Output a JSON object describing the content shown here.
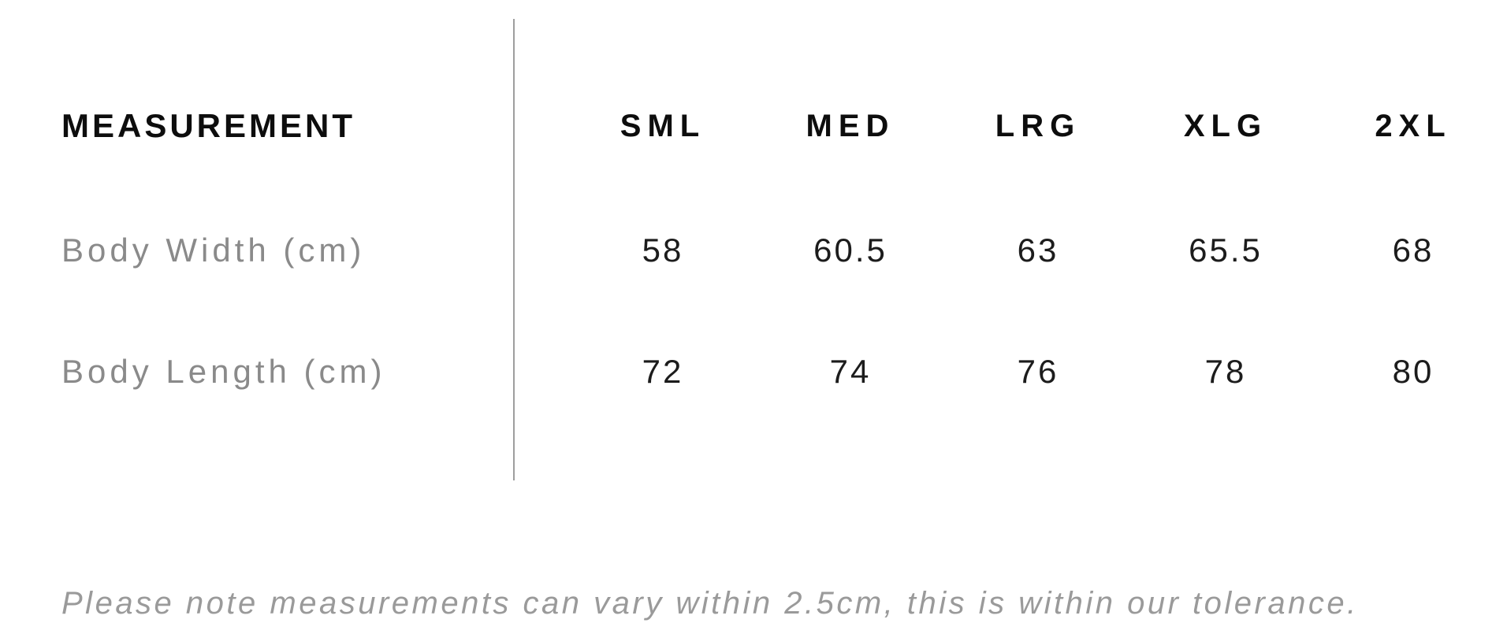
{
  "colors": {
    "background": "#ffffff",
    "header_text": "#0d0d0d",
    "value_text": "#1c1c1c",
    "label_gray": "#8a8a8a",
    "note_gray": "#9a9a9a",
    "divider_gray": "#9e9e9e"
  },
  "table": {
    "measurement_header": "MEASUREMENT",
    "size_headers": [
      "SML",
      "MED",
      "LRG",
      "XLG",
      "2XL"
    ],
    "rows": [
      {
        "label": "Body Width (cm)",
        "values": [
          "58",
          "60.5",
          "63",
          "65.5",
          "68"
        ]
      },
      {
        "label": "Body Length (cm)",
        "values": [
          "72",
          "74",
          "76",
          "78",
          "80"
        ]
      }
    ]
  },
  "note": "Please note measurements can vary within 2.5cm, this is within our tolerance.",
  "chart_data": {
    "type": "table",
    "columns": [
      "MEASUREMENT",
      "SML",
      "MED",
      "LRG",
      "XLG",
      "2XL"
    ],
    "rows": [
      [
        "Body Width (cm)",
        58,
        60.5,
        63,
        65.5,
        68
      ],
      [
        "Body Length (cm)",
        72,
        74,
        76,
        78,
        80
      ]
    ],
    "footnote": "Please note measurements can vary within 2.5cm, this is within our tolerance."
  }
}
